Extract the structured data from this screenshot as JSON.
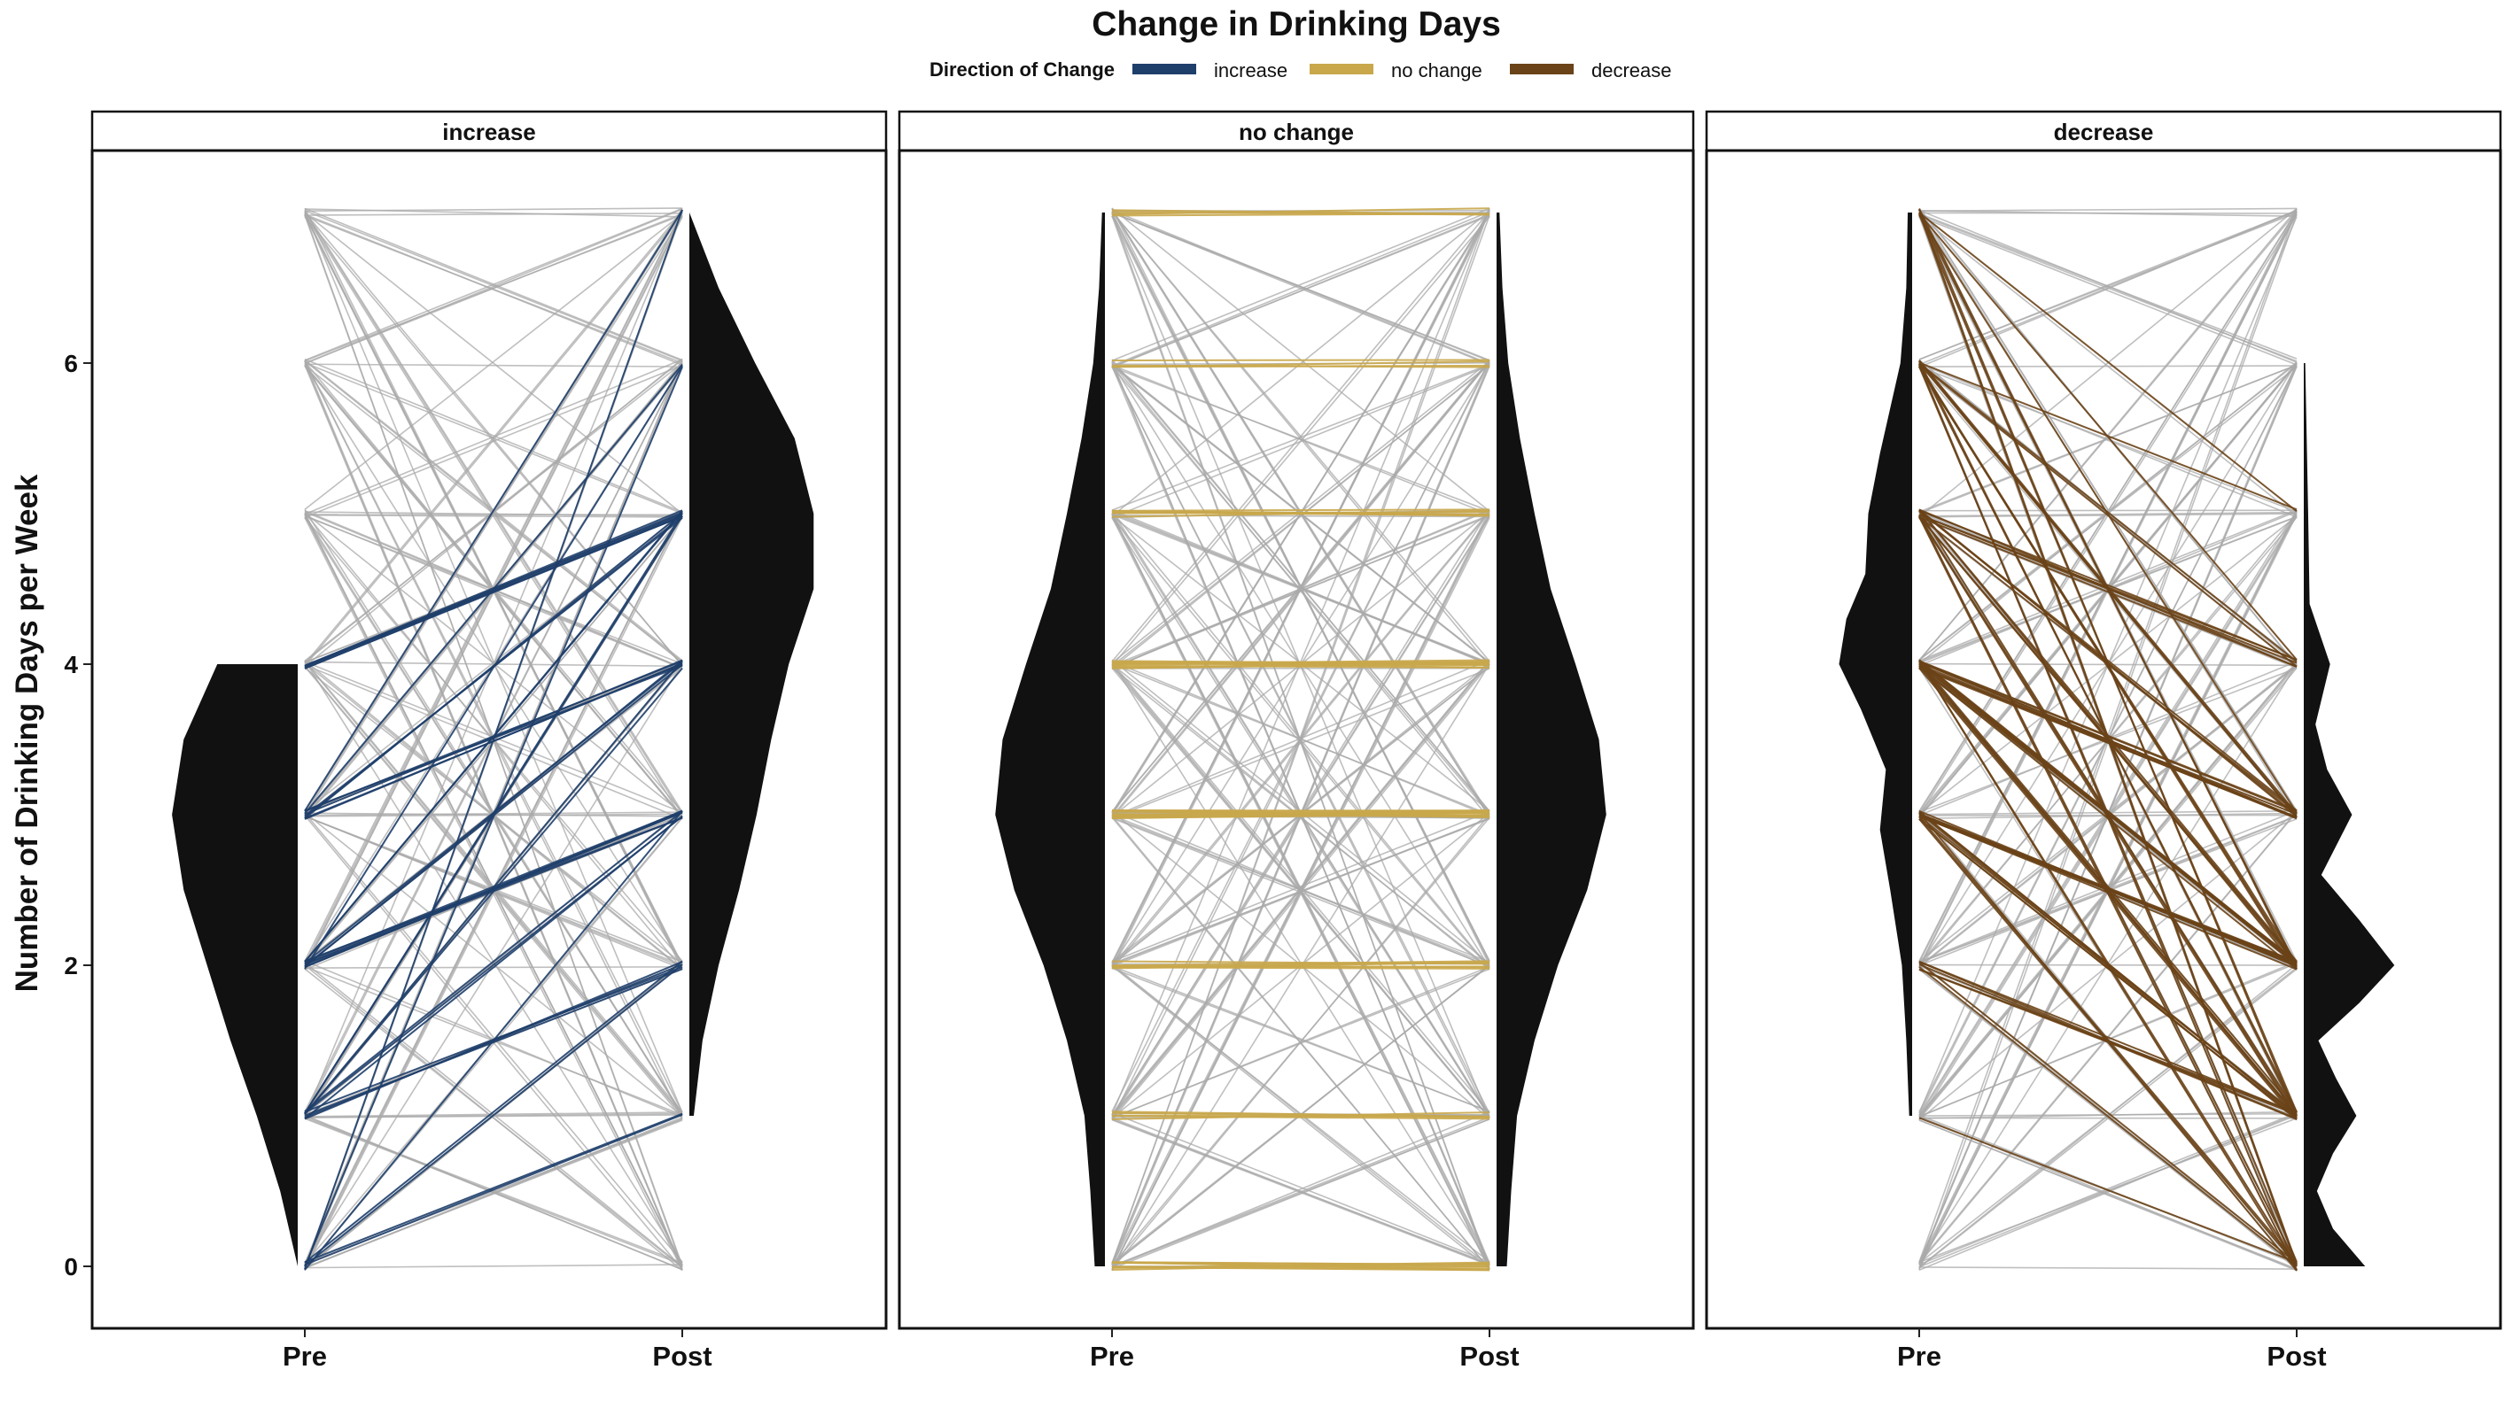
{
  "chart_data": {
    "type": "line",
    "subtype": "paired slopegraph with half-violin densities, faceted",
    "title": "Change in Drinking Days",
    "ylabel": "Number of Drinking Days per Week",
    "xlabel": "",
    "x_categories": [
      "Pre",
      "Post"
    ],
    "ylim": [
      -0.6,
      7.4
    ],
    "y_ticks": [
      0,
      2,
      4,
      6
    ],
    "grid": false,
    "legend": {
      "title": "Direction of Change",
      "placement": "top",
      "items": [
        {
          "label": "increase",
          "color": "#1f3f6b"
        },
        {
          "label": "no change",
          "color": "#c9a84c"
        },
        {
          "label": "decrease",
          "color": "#6b4318"
        }
      ]
    },
    "background_line_color": "#aaaaaa",
    "density_color": "#111111",
    "facets": [
      {
        "label": "increase",
        "color": "#1f3f6b",
        "pre_range": [
          0,
          4
        ],
        "post_range": [
          1,
          7
        ],
        "pairs": [
          {
            "pre": 4,
            "post": 5,
            "n": 6
          },
          {
            "pre": 3,
            "post": 4,
            "n": 5
          },
          {
            "pre": 3,
            "post": 5,
            "n": 3
          },
          {
            "pre": 2,
            "post": 3,
            "n": 6
          },
          {
            "pre": 2,
            "post": 4,
            "n": 3
          },
          {
            "pre": 2,
            "post": 5,
            "n": 2
          },
          {
            "pre": 1,
            "post": 2,
            "n": 4
          },
          {
            "pre": 1,
            "post": 3,
            "n": 3
          },
          {
            "pre": 1,
            "post": 5,
            "n": 2
          },
          {
            "pre": 0,
            "post": 1,
            "n": 2
          },
          {
            "pre": 0,
            "post": 2,
            "n": 2
          },
          {
            "pre": 0,
            "post": 3,
            "n": 1
          },
          {
            "pre": 0,
            "post": 6,
            "n": 1
          },
          {
            "pre": 0,
            "post": 7,
            "n": 1
          },
          {
            "pre": 3,
            "post": 7,
            "n": 1
          },
          {
            "pre": 2,
            "post": 6,
            "n": 1
          },
          {
            "pre": 1,
            "post": 4,
            "n": 2
          },
          {
            "pre": 3,
            "post": 6,
            "n": 1
          }
        ],
        "pre_density": [
          {
            "y": 0,
            "d": 0.0
          },
          {
            "y": 0.5,
            "d": 0.12
          },
          {
            "y": 1,
            "d": 0.28
          },
          {
            "y": 1.5,
            "d": 0.46
          },
          {
            "y": 2,
            "d": 0.62
          },
          {
            "y": 2.5,
            "d": 0.78
          },
          {
            "y": 3,
            "d": 0.86
          },
          {
            "y": 3.5,
            "d": 0.78
          },
          {
            "y": 4,
            "d": 0.55
          }
        ],
        "post_density": [
          {
            "y": 1,
            "d": 0.03
          },
          {
            "y": 1.5,
            "d": 0.09
          },
          {
            "y": 2,
            "d": 0.2
          },
          {
            "y": 2.5,
            "d": 0.34
          },
          {
            "y": 3,
            "d": 0.46
          },
          {
            "y": 3.5,
            "d": 0.56
          },
          {
            "y": 4,
            "d": 0.68
          },
          {
            "y": 4.5,
            "d": 0.85
          },
          {
            "y": 5,
            "d": 0.85
          },
          {
            "y": 5.5,
            "d": 0.72
          },
          {
            "y": 6,
            "d": 0.45
          },
          {
            "y": 6.5,
            "d": 0.2
          },
          {
            "y": 7,
            "d": 0.0
          }
        ]
      },
      {
        "label": "no change",
        "color": "#c9a84c",
        "pre_range": [
          0,
          7
        ],
        "post_range": [
          0,
          7
        ],
        "pairs": [
          {
            "pre": 0,
            "post": 0,
            "n": 10
          },
          {
            "pre": 1,
            "post": 1,
            "n": 5
          },
          {
            "pre": 2,
            "post": 2,
            "n": 7
          },
          {
            "pre": 3,
            "post": 3,
            "n": 14
          },
          {
            "pre": 4,
            "post": 4,
            "n": 11
          },
          {
            "pre": 5,
            "post": 5,
            "n": 7
          },
          {
            "pre": 6,
            "post": 6,
            "n": 4
          },
          {
            "pre": 7,
            "post": 7,
            "n": 4
          }
        ],
        "pre_density": [
          {
            "y": 0,
            "d": 0.07
          },
          {
            "y": 0.5,
            "d": 0.1
          },
          {
            "y": 1,
            "d": 0.14
          },
          {
            "y": 1.5,
            "d": 0.26
          },
          {
            "y": 2,
            "d": 0.42
          },
          {
            "y": 2.5,
            "d": 0.62
          },
          {
            "y": 3,
            "d": 0.75
          },
          {
            "y": 3.5,
            "d": 0.7
          },
          {
            "y": 4,
            "d": 0.54
          },
          {
            "y": 4.5,
            "d": 0.37
          },
          {
            "y": 5,
            "d": 0.26
          },
          {
            "y": 5.5,
            "d": 0.16
          },
          {
            "y": 6,
            "d": 0.08
          },
          {
            "y": 6.5,
            "d": 0.04
          },
          {
            "y": 7,
            "d": 0.02
          }
        ],
        "post_density": [
          {
            "y": 0,
            "d": 0.07
          },
          {
            "y": 0.5,
            "d": 0.1
          },
          {
            "y": 1,
            "d": 0.14
          },
          {
            "y": 1.5,
            "d": 0.26
          },
          {
            "y": 2,
            "d": 0.42
          },
          {
            "y": 2.5,
            "d": 0.62
          },
          {
            "y": 3,
            "d": 0.75
          },
          {
            "y": 3.5,
            "d": 0.7
          },
          {
            "y": 4,
            "d": 0.54
          },
          {
            "y": 4.5,
            "d": 0.37
          },
          {
            "y": 5,
            "d": 0.26
          },
          {
            "y": 5.5,
            "d": 0.16
          },
          {
            "y": 6,
            "d": 0.08
          },
          {
            "y": 6.5,
            "d": 0.04
          },
          {
            "y": 7,
            "d": 0.02
          }
        ]
      },
      {
        "label": "decrease",
        "color": "#6b4318",
        "pre_range": [
          1,
          7
        ],
        "post_range": [
          0,
          6
        ],
        "pairs": [
          {
            "pre": 7,
            "post": 0,
            "n": 2
          },
          {
            "pre": 7,
            "post": 1,
            "n": 2
          },
          {
            "pre": 7,
            "post": 2,
            "n": 2
          },
          {
            "pre": 7,
            "post": 3,
            "n": 1
          },
          {
            "pre": 7,
            "post": 4,
            "n": 1
          },
          {
            "pre": 7,
            "post": 5,
            "n": 1
          },
          {
            "pre": 6,
            "post": 0,
            "n": 2
          },
          {
            "pre": 6,
            "post": 1,
            "n": 2
          },
          {
            "pre": 6,
            "post": 2,
            "n": 3
          },
          {
            "pre": 6,
            "post": 3,
            "n": 3
          },
          {
            "pre": 6,
            "post": 4,
            "n": 2
          },
          {
            "pre": 6,
            "post": 5,
            "n": 1
          },
          {
            "pre": 5,
            "post": 0,
            "n": 2
          },
          {
            "pre": 5,
            "post": 1,
            "n": 3
          },
          {
            "pre": 5,
            "post": 2,
            "n": 4
          },
          {
            "pre": 5,
            "post": 3,
            "n": 4
          },
          {
            "pre": 5,
            "post": 4,
            "n": 5
          },
          {
            "pre": 4,
            "post": 0,
            "n": 2
          },
          {
            "pre": 4,
            "post": 1,
            "n": 5
          },
          {
            "pre": 4,
            "post": 2,
            "n": 8
          },
          {
            "pre": 4,
            "post": 3,
            "n": 8
          },
          {
            "pre": 3,
            "post": 0,
            "n": 3
          },
          {
            "pre": 3,
            "post": 1,
            "n": 6
          },
          {
            "pre": 3,
            "post": 2,
            "n": 9
          },
          {
            "pre": 2,
            "post": 0,
            "n": 2
          },
          {
            "pre": 2,
            "post": 1,
            "n": 5
          },
          {
            "pre": 1,
            "post": 0,
            "n": 1
          }
        ],
        "pre_density": [
          {
            "y": 1,
            "d": 0.02
          },
          {
            "y": 1.5,
            "d": 0.04
          },
          {
            "y": 2,
            "d": 0.07
          },
          {
            "y": 2.5,
            "d": 0.15
          },
          {
            "y": 2.9,
            "d": 0.22
          },
          {
            "y": 3.3,
            "d": 0.18
          },
          {
            "y": 3.7,
            "d": 0.35
          },
          {
            "y": 4,
            "d": 0.5
          },
          {
            "y": 4.3,
            "d": 0.45
          },
          {
            "y": 4.6,
            "d": 0.32
          },
          {
            "y": 5,
            "d": 0.3
          },
          {
            "y": 5.4,
            "d": 0.22
          },
          {
            "y": 6,
            "d": 0.08
          },
          {
            "y": 6.5,
            "d": 0.04
          },
          {
            "y": 7,
            "d": 0.03
          }
        ],
        "post_density": [
          {
            "y": 0,
            "d": 0.42
          },
          {
            "y": 0.25,
            "d": 0.2
          },
          {
            "y": 0.5,
            "d": 0.09
          },
          {
            "y": 0.75,
            "d": 0.2
          },
          {
            "y": 1,
            "d": 0.36
          },
          {
            "y": 1.25,
            "d": 0.22
          },
          {
            "y": 1.5,
            "d": 0.1
          },
          {
            "y": 1.75,
            "d": 0.38
          },
          {
            "y": 2,
            "d": 0.62
          },
          {
            "y": 2.3,
            "d": 0.38
          },
          {
            "y": 2.6,
            "d": 0.12
          },
          {
            "y": 3,
            "d": 0.33
          },
          {
            "y": 3.3,
            "d": 0.16
          },
          {
            "y": 3.6,
            "d": 0.08
          },
          {
            "y": 4,
            "d": 0.18
          },
          {
            "y": 4.4,
            "d": 0.04
          },
          {
            "y": 5,
            "d": 0.03
          },
          {
            "y": 5.5,
            "d": 0.02
          },
          {
            "y": 6,
            "d": 0.01
          }
        ]
      }
    ]
  }
}
